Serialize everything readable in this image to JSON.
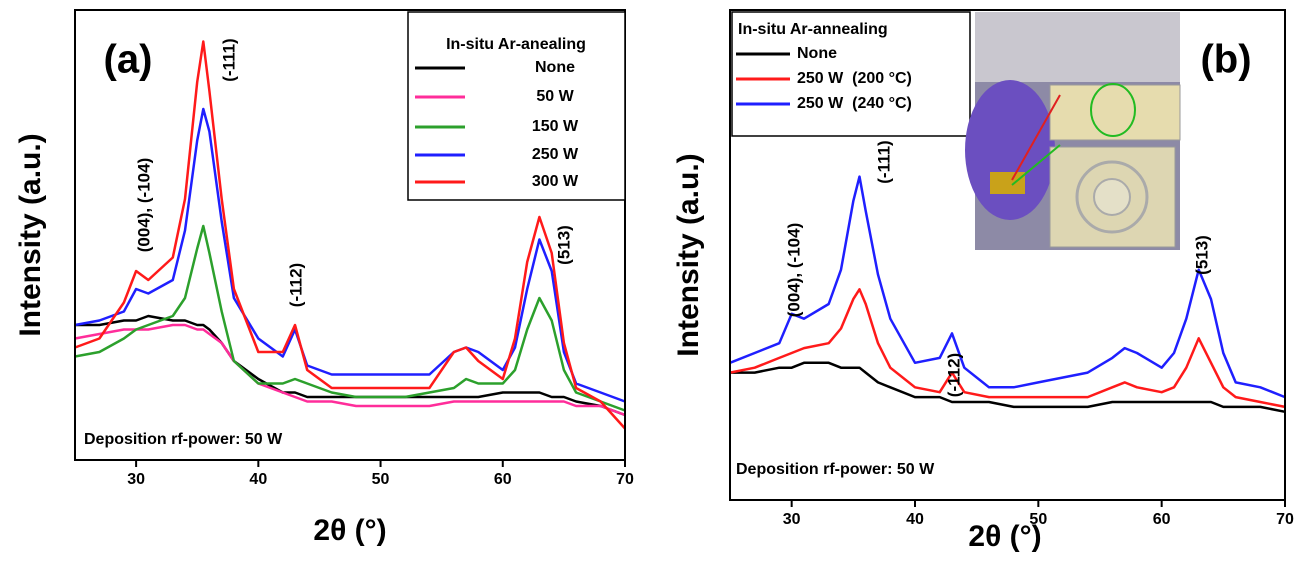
{
  "chart_data": [
    {
      "type": "line",
      "panel": "(a)",
      "legend_title": "In-situ Ar-anealing",
      "xlabel": "2θ (°)",
      "ylabel": "Intensity (a.u.)",
      "note": "Deposition rf-power: 50 W",
      "annotations": [
        "(004), (-104)",
        "(-111)",
        "(-112)",
        "(513)"
      ],
      "xlim": [
        25,
        70
      ],
      "xticks": [
        30,
        40,
        50,
        60,
        70
      ],
      "ylim": [
        0,
        100
      ],
      "x": [
        25,
        27,
        29,
        30,
        31,
        33,
        34,
        35,
        35.5,
        36,
        37,
        38,
        40,
        42,
        43,
        44,
        46,
        48,
        50,
        52,
        54,
        56,
        57,
        58,
        60,
        61,
        62,
        63,
        64,
        65,
        66,
        68,
        70
      ],
      "series": [
        {
          "name": "None",
          "color": "#000000",
          "values": [
            30,
            30,
            31,
            31,
            32,
            31,
            31,
            30,
            30,
            29,
            26,
            22,
            18,
            15,
            15,
            14,
            14,
            14,
            14,
            14,
            14,
            14,
            14,
            14,
            15,
            15,
            15,
            15,
            14,
            14,
            13,
            12,
            10
          ]
        },
        {
          "name": "50 W",
          "color": "#ff2d9a",
          "values": [
            27,
            28,
            29,
            29,
            29,
            30,
            30,
            29,
            29,
            28,
            26,
            22,
            17,
            15,
            14,
            13,
            13,
            12,
            12,
            12,
            12,
            13,
            13,
            13,
            13,
            13,
            13,
            13,
            13,
            13,
            12,
            12,
            10
          ]
        },
        {
          "name": "150 W",
          "color": "#2ca02c",
          "values": [
            23,
            24,
            27,
            29,
            30,
            32,
            36,
            47,
            52,
            46,
            33,
            22,
            17,
            17,
            18,
            17,
            15,
            14,
            14,
            14,
            15,
            16,
            18,
            17,
            17,
            20,
            29,
            36,
            31,
            20,
            15,
            13,
            11
          ]
        },
        {
          "name": "250 W",
          "color": "#1f1fff",
          "values": [
            30,
            31,
            33,
            38,
            37,
            40,
            51,
            71,
            78,
            73,
            53,
            36,
            27,
            23,
            29,
            21,
            19,
            19,
            19,
            19,
            19,
            24,
            25,
            24,
            20,
            25,
            38,
            49,
            42,
            24,
            17,
            15,
            13
          ]
        },
        {
          "name": "300 W",
          "color": "#ff1a1a",
          "values": [
            25,
            27,
            35,
            42,
            40,
            45,
            58,
            84,
            93,
            82,
            58,
            38,
            24,
            24,
            30,
            20,
            16,
            16,
            16,
            16,
            16,
            24,
            25,
            22,
            18,
            27,
            44,
            54,
            46,
            26,
            16,
            13,
            7
          ]
        }
      ]
    },
    {
      "type": "line",
      "panel": "(b)",
      "legend_title": "In-situ Ar-annealing",
      "xlabel": "2θ (°)",
      "ylabel": "Intensity (a.u.)",
      "note": "Deposition rf-power: 50 W",
      "annotations": [
        "(004), (-104)",
        "(-111)",
        "(-112)",
        "(513)"
      ],
      "xlim": [
        25,
        70
      ],
      "xticks": [
        30,
        40,
        50,
        60,
        70
      ],
      "ylim": [
        0,
        100
      ],
      "x": [
        25,
        27,
        29,
        30,
        31,
        33,
        34,
        35,
        35.5,
        36,
        37,
        38,
        40,
        42,
        43,
        44,
        46,
        48,
        50,
        52,
        54,
        56,
        57,
        58,
        60,
        61,
        62,
        63,
        64,
        65,
        66,
        68,
        70
      ],
      "series": [
        {
          "name": "None",
          "color": "#000000",
          "values": [
            26,
            26,
            27,
            27,
            28,
            28,
            27,
            27,
            27,
            26,
            24,
            23,
            21,
            21,
            20,
            20,
            20,
            19,
            19,
            19,
            19,
            20,
            20,
            20,
            20,
            20,
            20,
            20,
            20,
            19,
            19,
            19,
            18
          ]
        },
        {
          "name": "250 W  (200 °C)",
          "color": "#ff1a1a",
          "values": [
            26,
            27,
            29,
            30,
            31,
            32,
            35,
            41,
            43,
            40,
            32,
            27,
            23,
            22,
            26,
            22,
            21,
            21,
            21,
            21,
            21,
            23,
            24,
            23,
            22,
            23,
            27,
            33,
            28,
            23,
            21,
            20,
            19
          ]
        },
        {
          "name": "250 W  (240 °C)",
          "color": "#1f1fff",
          "values": [
            28,
            30,
            32,
            38,
            37,
            40,
            47,
            61,
            66,
            59,
            46,
            37,
            28,
            29,
            34,
            27,
            23,
            23,
            24,
            25,
            26,
            29,
            31,
            30,
            27,
            30,
            37,
            47,
            41,
            30,
            24,
            23,
            21
          ]
        }
      ]
    }
  ]
}
